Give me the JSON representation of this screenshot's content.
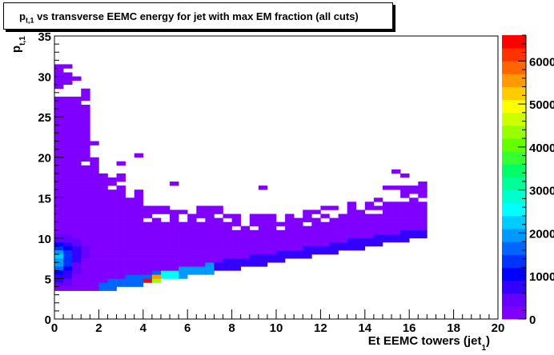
{
  "title": {
    "main": "p",
    "sub": "t,1",
    "rest": " vs transverse EEMC energy for jet with max EM fraction (all cuts)"
  },
  "axes": {
    "xlabel": "Et EEMC towers (jet",
    "xlabel_sub": "1",
    "xlabel_close": ")",
    "ylabel": "p",
    "ylabel_sub": "t,1"
  },
  "colors": {
    "palette": [
      "#7f00ff",
      "#6600ff",
      "#3300ff",
      "#0000ff",
      "#0033ff",
      "#0066ff",
      "#0099ff",
      "#00ccff",
      "#00ffff",
      "#00ffcc",
      "#00ff99",
      "#00ff66",
      "#33ff33",
      "#66ff00",
      "#99ff00",
      "#ccff00",
      "#ffff00",
      "#ffcc00",
      "#ff9900",
      "#ff6600",
      "#ff3300",
      "#ff0000"
    ]
  },
  "chart_data": {
    "type": "heatmap",
    "title": "p_t,1 vs transverse EEMC energy for jet with max EM fraction (all cuts)",
    "xlabel": "Et EEMC towers (jet_1)",
    "ylabel": "p_t,1",
    "xlim": [
      0,
      20
    ],
    "ylim": [
      0,
      35
    ],
    "x_ticks": [
      "0",
      "2",
      "4",
      "6",
      "8",
      "10",
      "12",
      "14",
      "16",
      "18",
      "20"
    ],
    "y_ticks": [
      "0",
      "5",
      "10",
      "15",
      "20",
      "25",
      "30",
      "35"
    ],
    "bin_width_x": 0.4,
    "bin_width_y": 0.5,
    "zlim": [
      0,
      6600
    ],
    "z_ticks": [
      "0",
      "1000",
      "2000",
      "3000",
      "4000",
      "5000",
      "6000"
    ],
    "z_tick_values": [
      0,
      1000,
      2000,
      3000,
      4000,
      5000,
      6000
    ],
    "cells": [
      [
        0.0,
        31.0,
        10
      ],
      [
        0.0,
        30.5,
        10
      ],
      [
        0.0,
        30.0,
        10
      ],
      [
        0.0,
        29.5,
        10
      ],
      [
        0.0,
        29.0,
        10
      ],
      [
        0.0,
        28.5,
        10
      ],
      [
        0.0,
        27.0,
        10
      ],
      [
        0.0,
        26.5,
        10
      ],
      [
        0.0,
        26.0,
        10
      ],
      [
        0.0,
        25.5,
        10
      ],
      [
        0.0,
        25.0,
        10
      ],
      [
        0.0,
        24.5,
        10
      ],
      [
        0.0,
        24.0,
        10
      ],
      [
        0.0,
        23.5,
        10
      ],
      [
        0.0,
        23.0,
        10
      ],
      [
        0.0,
        22.5,
        10
      ],
      [
        0.0,
        22.0,
        10
      ],
      [
        0.0,
        21.5,
        10
      ],
      [
        0.0,
        21.0,
        10
      ],
      [
        0.0,
        20.5,
        10
      ],
      [
        0.0,
        20.0,
        10
      ],
      [
        0.0,
        19.5,
        10
      ],
      [
        0.0,
        19.0,
        10
      ],
      [
        0.0,
        18.5,
        10
      ],
      [
        0.0,
        18.0,
        10
      ],
      [
        0.0,
        17.5,
        10
      ],
      [
        0.0,
        17.0,
        10
      ],
      [
        0.0,
        16.5,
        10
      ],
      [
        0.0,
        16.0,
        10
      ],
      [
        0.0,
        15.5,
        10
      ],
      [
        0.0,
        15.0,
        10
      ],
      [
        0.0,
        14.5,
        10
      ],
      [
        0.0,
        14.0,
        10
      ],
      [
        0.0,
        13.5,
        10
      ],
      [
        0.0,
        13.0,
        10
      ],
      [
        0.0,
        12.5,
        10
      ],
      [
        0.0,
        12.0,
        10
      ],
      [
        0.0,
        11.5,
        10
      ],
      [
        0.0,
        11.0,
        100
      ],
      [
        0.0,
        10.5,
        200
      ],
      [
        0.0,
        10.0,
        300
      ],
      [
        0.0,
        9.5,
        500
      ],
      [
        0.0,
        9.0,
        900
      ],
      [
        0.0,
        8.5,
        1400
      ],
      [
        0.0,
        8.0,
        1900
      ],
      [
        0.0,
        7.5,
        2100
      ],
      [
        0.0,
        7.0,
        2000
      ],
      [
        0.0,
        6.5,
        1800
      ],
      [
        0.0,
        6.0,
        1500
      ],
      [
        0.0,
        5.5,
        1100
      ],
      [
        0.0,
        5.0,
        800
      ],
      [
        0.0,
        4.5,
        600
      ],
      [
        0.0,
        4.0,
        400
      ],
      [
        0.0,
        3.5,
        200
      ],
      [
        0.4,
        31.0,
        10
      ],
      [
        0.4,
        30.0,
        10
      ],
      [
        0.4,
        29.5,
        10
      ],
      [
        0.4,
        29.0,
        10
      ],
      [
        0.4,
        27.0,
        10
      ],
      [
        0.4,
        26.5,
        10
      ],
      [
        0.4,
        26.0,
        10
      ],
      [
        0.4,
        25.5,
        10
      ],
      [
        0.4,
        25.0,
        10
      ],
      [
        0.4,
        24.5,
        10
      ],
      [
        0.4,
        24.0,
        10
      ],
      [
        0.4,
        23.5,
        10
      ],
      [
        0.4,
        23.0,
        10
      ],
      [
        0.4,
        22.5,
        10
      ],
      [
        0.4,
        22.0,
        10
      ],
      [
        0.4,
        21.5,
        10
      ],
      [
        0.4,
        21.0,
        10
      ],
      [
        0.4,
        20.5,
        10
      ],
      [
        0.4,
        20.0,
        10
      ],
      [
        0.4,
        19.5,
        10
      ],
      [
        0.4,
        19.0,
        10
      ],
      [
        0.4,
        18.5,
        10
      ],
      [
        0.4,
        18.0,
        10
      ],
      [
        0.4,
        17.5,
        10
      ],
      [
        0.4,
        17.0,
        10
      ],
      [
        0.4,
        16.5,
        10
      ],
      [
        0.4,
        16.0,
        10
      ],
      [
        0.4,
        15.5,
        10
      ],
      [
        0.4,
        15.0,
        10
      ],
      [
        0.4,
        14.5,
        10
      ],
      [
        0.4,
        14.0,
        10
      ],
      [
        0.4,
        13.5,
        10
      ],
      [
        0.4,
        13.0,
        10
      ],
      [
        0.4,
        12.5,
        10
      ],
      [
        0.4,
        12.0,
        10
      ],
      [
        0.4,
        11.5,
        10
      ],
      [
        0.4,
        11.0,
        100
      ],
      [
        0.4,
        10.5,
        200
      ],
      [
        0.4,
        10.0,
        300
      ],
      [
        0.4,
        9.5,
        500
      ],
      [
        0.4,
        9.0,
        700
      ],
      [
        0.4,
        8.5,
        1000
      ],
      [
        0.4,
        8.0,
        1300
      ],
      [
        0.4,
        7.5,
        1400
      ],
      [
        0.4,
        7.0,
        1300
      ],
      [
        0.4,
        6.5,
        1200
      ],
      [
        0.4,
        6.0,
        1000
      ],
      [
        0.4,
        5.5,
        800
      ],
      [
        0.4,
        5.0,
        600
      ],
      [
        0.4,
        4.5,
        400
      ],
      [
        0.4,
        4.0,
        300
      ],
      [
        0.4,
        3.5,
        150
      ],
      [
        0.8,
        29.5,
        10
      ],
      [
        0.8,
        27.0,
        10
      ],
      [
        0.8,
        26.5,
        10
      ],
      [
        0.8,
        26.0,
        10
      ],
      [
        0.8,
        25.5,
        10
      ],
      [
        0.8,
        25.0,
        10
      ],
      [
        0.8,
        24.5,
        10
      ],
      [
        0.8,
        24.0,
        10
      ],
      [
        0.8,
        23.5,
        10
      ],
      [
        0.8,
        23.0,
        10
      ],
      [
        0.8,
        22.5,
        10
      ],
      [
        0.8,
        22.0,
        10
      ],
      [
        0.8,
        21.5,
        10
      ],
      [
        0.8,
        21.0,
        10
      ],
      [
        0.8,
        20.5,
        10
      ],
      [
        0.8,
        20.0,
        10
      ],
      [
        0.8,
        19.5,
        10
      ],
      [
        0.8,
        19.0,
        10
      ],
      [
        0.8,
        18.5,
        10
      ],
      [
        0.8,
        18.0,
        10
      ],
      [
        0.8,
        17.5,
        10
      ],
      [
        0.8,
        17.0,
        10
      ],
      [
        0.8,
        16.5,
        10
      ],
      [
        0.8,
        16.0,
        10
      ],
      [
        0.8,
        15.5,
        10
      ],
      [
        0.8,
        15.0,
        10
      ],
      [
        0.8,
        14.5,
        10
      ],
      [
        0.8,
        14.0,
        10
      ],
      [
        0.8,
        13.5,
        10
      ],
      [
        0.8,
        13.0,
        10
      ],
      [
        0.8,
        12.5,
        10
      ],
      [
        0.8,
        12.0,
        10
      ],
      [
        0.8,
        11.5,
        10
      ],
      [
        0.8,
        11.0,
        50
      ],
      [
        0.8,
        10.5,
        100
      ],
      [
        0.8,
        10.0,
        200
      ],
      [
        0.8,
        9.5,
        300
      ],
      [
        0.8,
        9.0,
        400
      ],
      [
        0.8,
        8.5,
        600
      ],
      [
        0.8,
        8.0,
        700
      ],
      [
        0.8,
        7.5,
        700
      ],
      [
        0.8,
        7.0,
        600
      ],
      [
        0.8,
        6.5,
        500
      ],
      [
        0.8,
        6.0,
        400
      ],
      [
        0.8,
        5.5,
        300
      ],
      [
        0.8,
        5.0,
        200
      ],
      [
        0.8,
        4.5,
        150
      ],
      [
        0.8,
        4.0,
        100
      ],
      [
        0.8,
        3.5,
        50
      ],
      [
        1.2,
        28.0,
        10
      ],
      [
        1.2,
        27.5,
        10
      ],
      [
        1.2,
        27.0,
        10
      ],
      [
        1.2,
        26.0,
        10
      ],
      [
        1.2,
        25.5,
        10
      ],
      [
        1.2,
        25.0,
        10
      ],
      [
        1.2,
        24.5,
        10
      ],
      [
        1.2,
        24.0,
        10
      ],
      [
        1.2,
        23.5,
        10
      ],
      [
        1.2,
        23.0,
        10
      ],
      [
        1.2,
        22.5,
        10
      ],
      [
        1.2,
        22.0,
        10
      ],
      [
        1.2,
        21.5,
        10
      ],
      [
        1.2,
        21.0,
        10
      ],
      [
        1.2,
        20.5,
        10
      ],
      [
        1.2,
        20.0,
        10
      ],
      [
        1.2,
        19.5,
        10
      ],
      [
        1.2,
        18.5,
        10
      ],
      [
        1.2,
        18.0,
        10
      ],
      [
        1.2,
        17.5,
        10
      ],
      [
        1.2,
        17.0,
        10
      ],
      [
        1.2,
        16.5,
        10
      ],
      [
        1.2,
        16.0,
        10
      ],
      [
        1.2,
        15.5,
        10
      ],
      [
        1.2,
        15.0,
        10
      ],
      [
        1.2,
        14.5,
        10
      ],
      [
        1.2,
        14.0,
        10
      ],
      [
        1.2,
        13.5,
        10
      ],
      [
        1.2,
        13.0,
        10
      ],
      [
        1.2,
        12.5,
        10
      ],
      [
        1.2,
        12.0,
        10
      ],
      [
        1.2,
        11.5,
        10
      ],
      [
        1.2,
        11.0,
        10
      ],
      [
        1.2,
        10.5,
        50
      ],
      [
        1.2,
        10.0,
        100
      ],
      [
        1.2,
        9.5,
        150
      ],
      [
        1.2,
        9.0,
        200
      ],
      [
        1.2,
        8.5,
        300
      ],
      [
        1.2,
        8.0,
        300
      ],
      [
        1.2,
        7.5,
        300
      ],
      [
        1.2,
        7.0,
        250
      ],
      [
        1.2,
        6.5,
        200
      ],
      [
        1.2,
        6.0,
        150
      ],
      [
        1.2,
        5.5,
        100
      ],
      [
        1.2,
        5.0,
        80
      ],
      [
        1.2,
        4.5,
        50
      ],
      [
        1.2,
        4.0,
        30
      ],
      [
        1.2,
        3.5,
        10
      ],
      [
        1.6,
        21.5,
        10
      ],
      [
        1.6,
        19.5,
        10
      ],
      [
        1.6,
        19.0,
        10
      ],
      [
        1.6,
        18.5,
        10
      ],
      [
        1.6,
        18.0,
        10
      ],
      [
        1.6,
        17.5,
        10
      ],
      [
        1.6,
        17.0,
        10
      ],
      [
        1.6,
        16.5,
        10
      ],
      [
        1.6,
        16.0,
        10
      ],
      [
        1.6,
        15.5,
        10
      ],
      [
        1.6,
        15.0,
        10
      ],
      [
        1.6,
        14.5,
        10
      ],
      [
        1.6,
        14.0,
        10
      ],
      [
        1.6,
        13.5,
        10
      ],
      [
        1.6,
        13.0,
        10
      ],
      [
        1.6,
        12.5,
        10
      ],
      [
        1.6,
        12.0,
        10
      ],
      [
        1.6,
        11.5,
        10
      ],
      [
        1.6,
        11.0,
        10
      ],
      [
        1.6,
        10.5,
        10
      ],
      [
        1.6,
        10.0,
        10
      ],
      [
        1.6,
        9.5,
        10
      ],
      [
        1.6,
        9.0,
        10
      ],
      [
        1.6,
        8.5,
        10
      ],
      [
        1.6,
        8.0,
        10
      ],
      [
        1.6,
        7.5,
        10
      ],
      [
        1.6,
        7.0,
        10
      ],
      [
        1.6,
        6.5,
        10
      ],
      [
        1.6,
        6.0,
        10
      ],
      [
        1.6,
        5.5,
        10
      ],
      [
        1.6,
        5.0,
        10
      ],
      [
        1.6,
        4.5,
        10
      ],
      [
        1.6,
        4.0,
        10
      ],
      [
        1.6,
        3.5,
        10
      ]
    ]
  },
  "pal_ticks_y": [
    0,
    1000,
    2000,
    3000,
    4000,
    5000,
    6000
  ]
}
